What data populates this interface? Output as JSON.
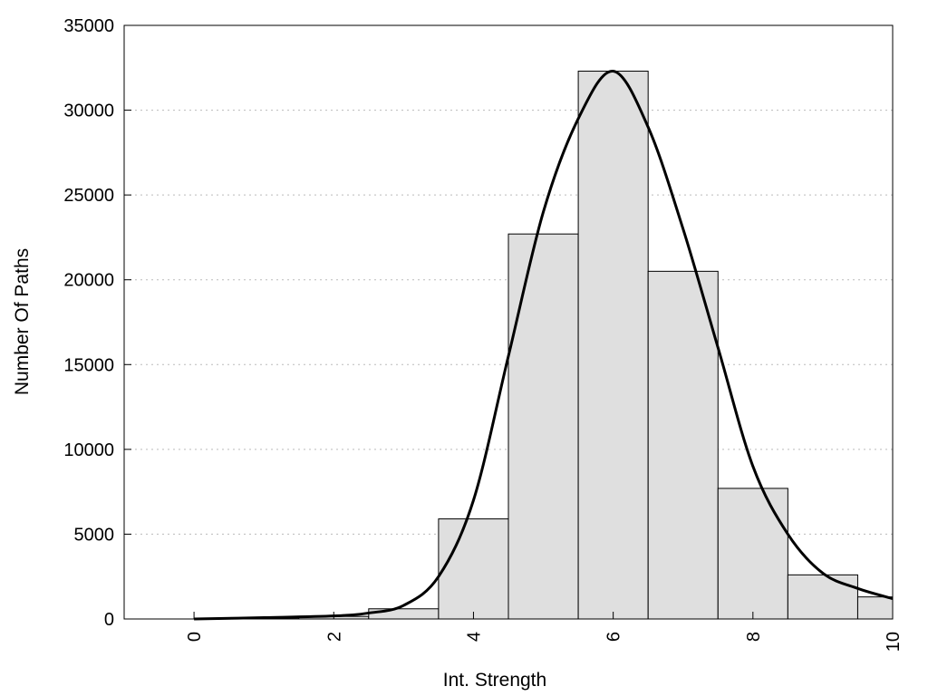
{
  "chart_data": {
    "type": "bar",
    "title": "",
    "xlabel": "Int. Strength",
    "ylabel": "Number Of Paths",
    "xlim": [
      -1,
      10
    ],
    "ylim": [
      0,
      35000
    ],
    "x_ticks": [
      0,
      2,
      4,
      6,
      8,
      10
    ],
    "y_ticks": [
      0,
      5000,
      10000,
      15000,
      20000,
      25000,
      30000,
      35000
    ],
    "grid": "horizontal dotted",
    "bins": [
      {
        "x": 0,
        "value": 0
      },
      {
        "x": 1,
        "value": 60
      },
      {
        "x": 2,
        "value": 150
      },
      {
        "x": 3,
        "value": 600
      },
      {
        "x": 4,
        "value": 5900
      },
      {
        "x": 5,
        "value": 22700
      },
      {
        "x": 6,
        "value": 32300
      },
      {
        "x": 7,
        "value": 20500
      },
      {
        "x": 8,
        "value": 7700
      },
      {
        "x": 9,
        "value": 2600
      },
      {
        "x": 10,
        "value": 1300
      }
    ],
    "bin_width": 1,
    "curve": {
      "type": "line",
      "x": [
        0,
        1,
        2,
        2.5,
        3,
        3.5,
        4,
        4.5,
        5,
        5.5,
        6,
        6.5,
        7,
        7.5,
        8,
        8.5,
        9,
        9.5,
        10
      ],
      "y": [
        0,
        80,
        180,
        350,
        800,
        2500,
        7000,
        15500,
        24000,
        29500,
        32300,
        29000,
        23000,
        16000,
        9000,
        5000,
        2700,
        1800,
        1200
      ]
    },
    "colors": {
      "bar_fill": "#dfdfdf",
      "bar_stroke": "#000000",
      "curve": "#000000",
      "grid": "#bbbbbb"
    }
  }
}
